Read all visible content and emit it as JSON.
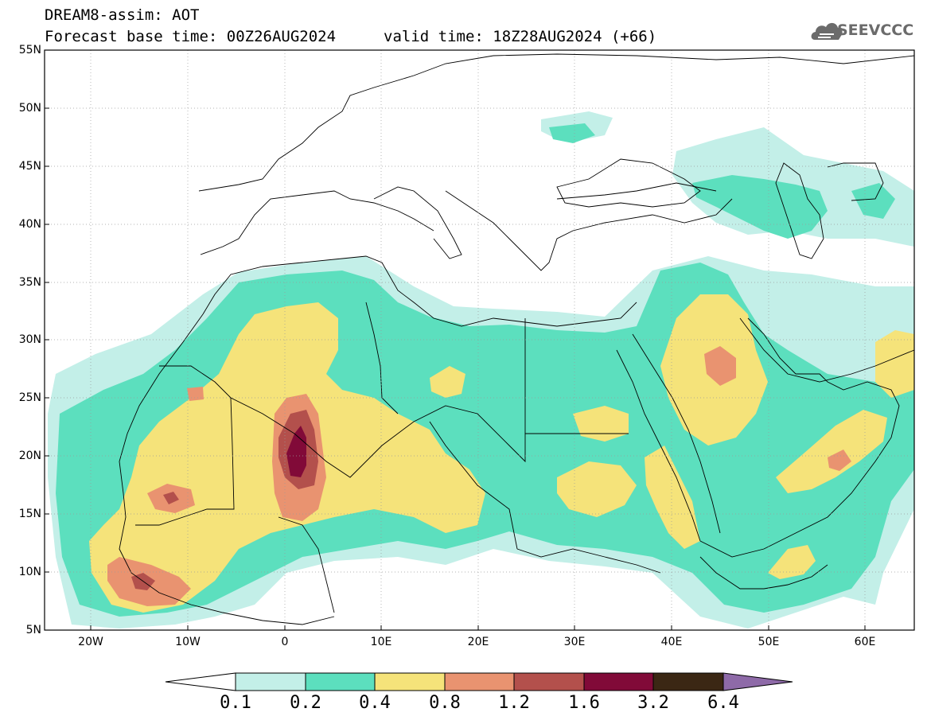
{
  "header": {
    "title": "DREAM8-assim: AOT",
    "base_time": "Forecast base time: 00Z26AUG2024",
    "valid_time": "valid time: 18Z28AUG2024 (+66)"
  },
  "logo": {
    "text": "SEEVCCC",
    "icon": "cloud-icon"
  },
  "map": {
    "lat_labels": [
      "55N",
      "50N",
      "45N",
      "40N",
      "35N",
      "30N",
      "25N",
      "20N",
      "15N",
      "10N",
      "5N"
    ],
    "lon_labels": [
      "20W",
      "10W",
      "0",
      "10E",
      "20E",
      "30E",
      "40E",
      "50E",
      "60E"
    ],
    "lon_range": [
      -25,
      65
    ],
    "lat_range": [
      5,
      55
    ],
    "grid": true
  },
  "colorbar": {
    "labels": [
      "0.1",
      "0.2",
      "0.4",
      "0.8",
      "1.2",
      "1.6",
      "3.2",
      "6.4"
    ],
    "colors": [
      "#c3efe8",
      "#5cdfbe",
      "#f5e37a",
      "#e99370",
      "#b3504c",
      "#810a38",
      "#3b2714"
    ],
    "under_color": "#ffffff",
    "over_color": "#8e6aa8"
  }
}
